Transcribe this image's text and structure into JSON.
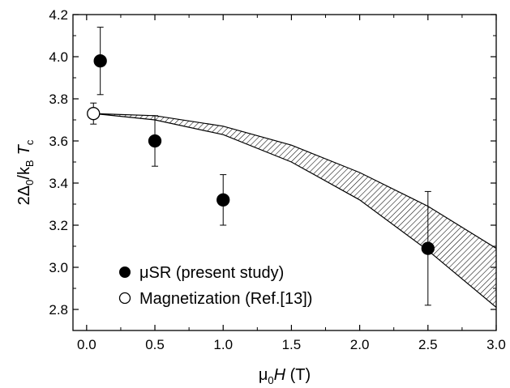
{
  "chart_data": {
    "type": "scatter",
    "xlim": [
      -0.1,
      3.0
    ],
    "ylim": [
      2.7,
      4.2
    ],
    "x_ticks": [
      0.0,
      0.5,
      1.0,
      1.5,
      2.0,
      2.5,
      3.0
    ],
    "x_tick_labels": [
      "0.0",
      "0.5",
      "1.0",
      "1.5",
      "2.0",
      "2.5",
      "3.0"
    ],
    "y_ticks": [
      2.8,
      3.0,
      3.2,
      3.4,
      3.6,
      3.8,
      4.0,
      4.2
    ],
    "y_tick_labels": [
      "2.8",
      "3.0",
      "3.2",
      "3.4",
      "3.6",
      "3.8",
      "4.0",
      "4.2"
    ],
    "xlabel": {
      "mu": "μ",
      "sub0": "0",
      "H": "H",
      "unit": " (T)"
    },
    "ylabel": {
      "prefix": "2Δ",
      "sub0": "0",
      "mid": "/k",
      "subB": "B",
      "T": "T",
      "subc": "c"
    },
    "grid": false,
    "legend_position": "bottom-left",
    "series": [
      {
        "name": "μSR (present study)",
        "marker": "filled-circle",
        "color": "#000000",
        "points": [
          {
            "x": 0.1,
            "y": 3.98,
            "err": 0.16
          },
          {
            "x": 0.5,
            "y": 3.6,
            "err": 0.12
          },
          {
            "x": 1.0,
            "y": 3.32,
            "err": 0.12
          },
          {
            "x": 2.5,
            "y": 3.09,
            "err": 0.27
          }
        ]
      },
      {
        "name": "Magnetization (Ref.[13])",
        "marker": "open-circle",
        "color": "#000000",
        "points": [
          {
            "x": 0.05,
            "y": 3.73,
            "err": 0.05
          }
        ]
      }
    ],
    "band": {
      "style": "hatched",
      "x": [
        0.05,
        0.5,
        1.0,
        1.5,
        2.0,
        2.5,
        3.0
      ],
      "upper": [
        3.73,
        3.72,
        3.67,
        3.58,
        3.45,
        3.29,
        3.09
      ],
      "lower": [
        3.73,
        3.7,
        3.63,
        3.5,
        3.32,
        3.08,
        2.81
      ]
    }
  }
}
